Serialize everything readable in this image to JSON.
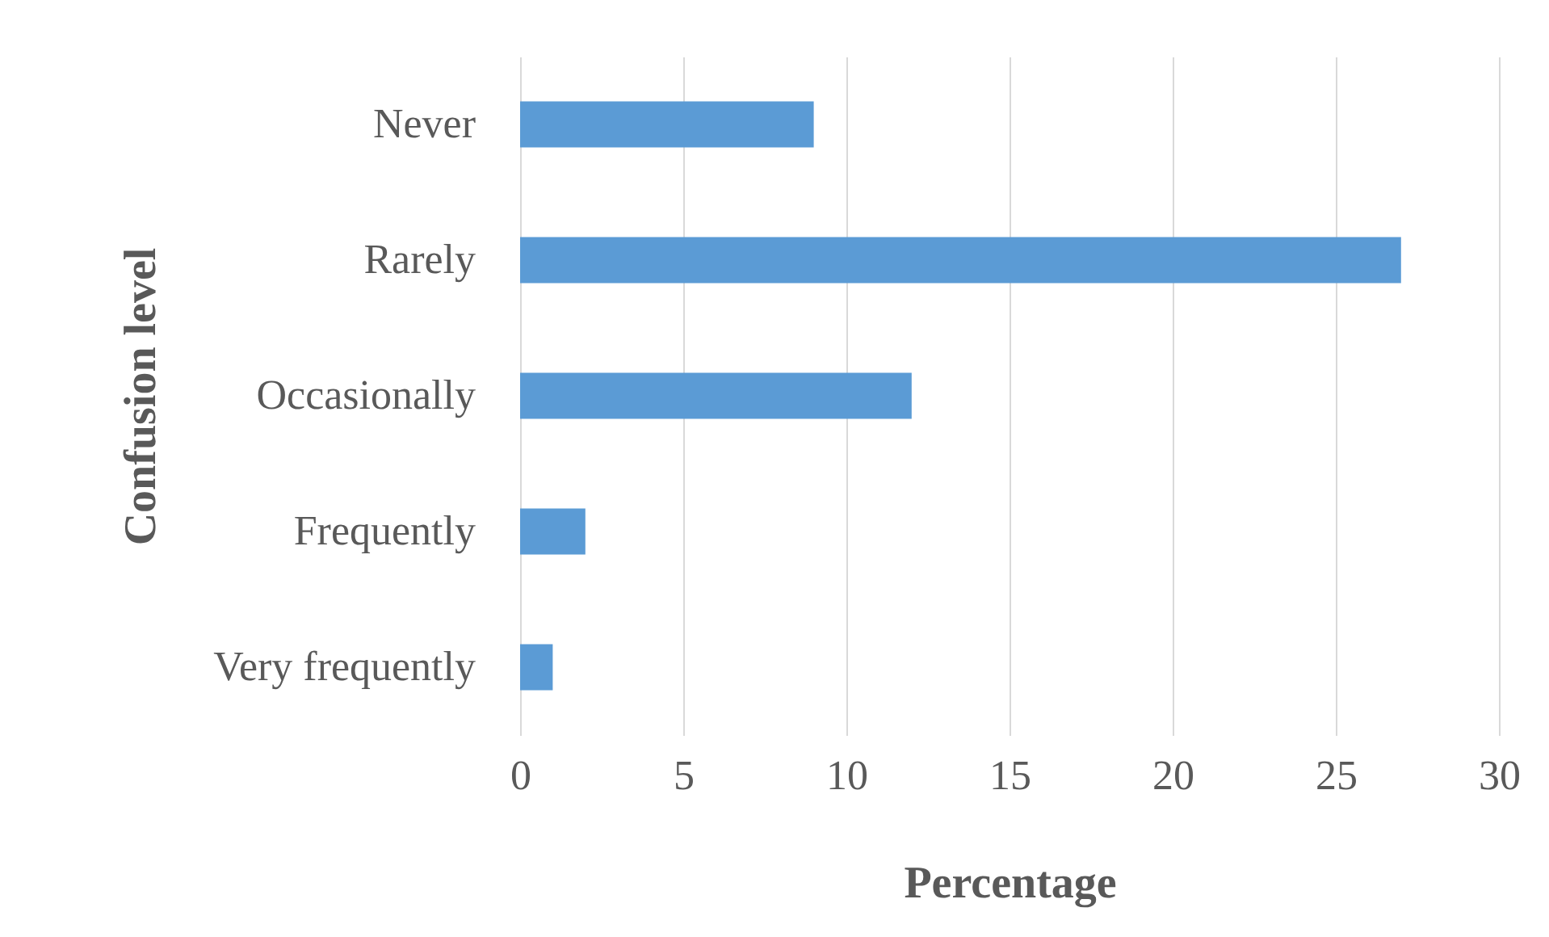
{
  "chart_data": {
    "type": "bar",
    "orientation": "horizontal",
    "xlabel": "Percentage",
    "ylabel": "Confusion level",
    "categories": [
      "Never",
      "Rarely",
      "Occasionally",
      "Frequently",
      "Very frequently"
    ],
    "values": [
      9,
      27,
      12,
      2,
      1
    ],
    "color": "#5b9bd5",
    "xlim": [
      0,
      30
    ],
    "xticks": [
      0,
      5,
      10,
      15,
      20,
      25,
      30
    ],
    "grid": "x"
  }
}
